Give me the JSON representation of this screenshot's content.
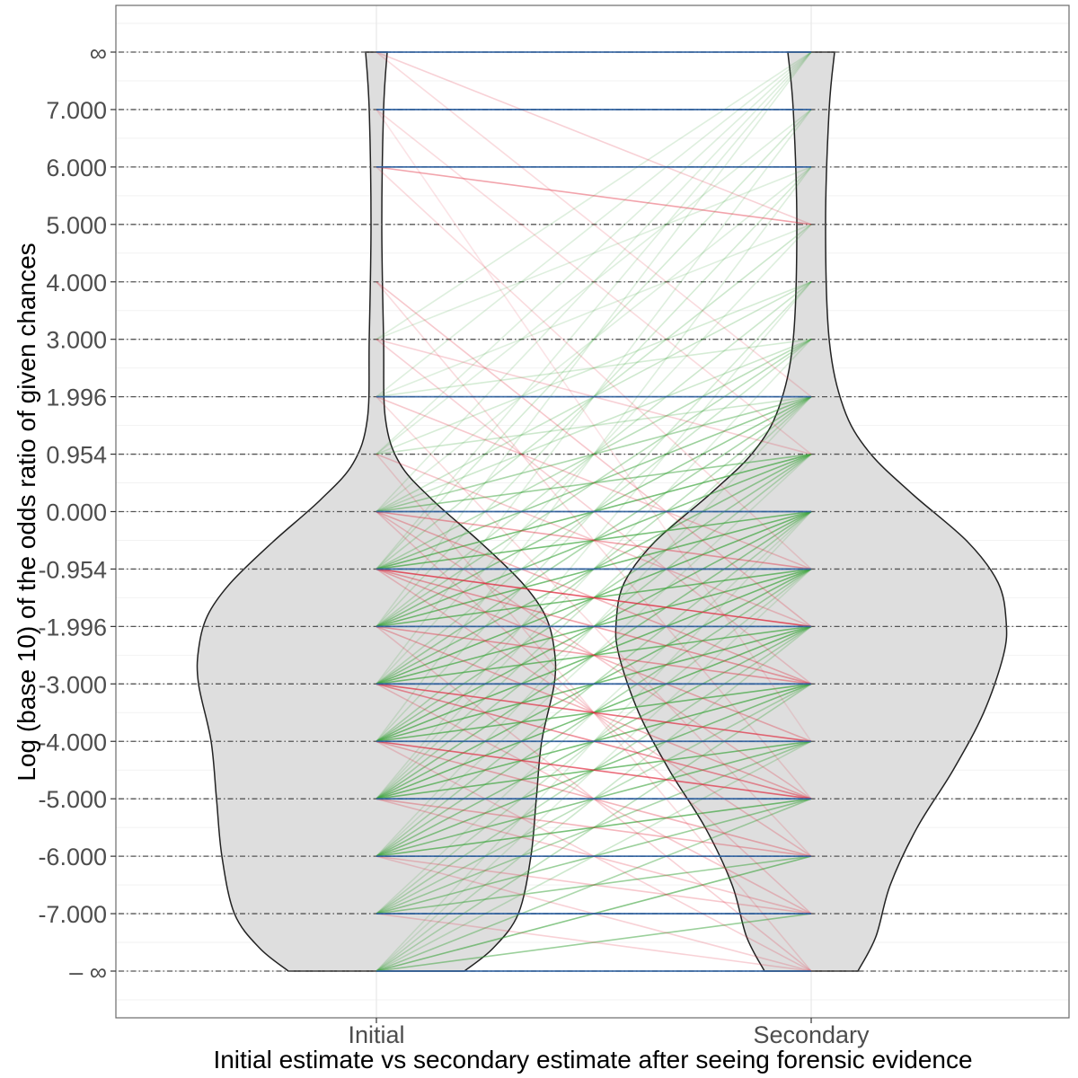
{
  "chart_data": {
    "type": "violin",
    "xlabel": "Initial estimate vs secondary estimate after seeing forensic evidence",
    "ylabel": "Log (base 10) of the odds ratio of given chances",
    "categories": [
      "Initial",
      "Secondary"
    ],
    "y_levels": [
      -8,
      -7,
      -6,
      -5,
      -4,
      -3,
      -1.996,
      -0.954,
      0,
      0.954,
      1.996,
      3,
      4,
      5,
      6,
      7,
      8
    ],
    "y_tick_labels": [
      "– ∞",
      "-7.000",
      "-6.000",
      "-5.000",
      "-4.000",
      "-3.000",
      "-1.996",
      "-0.954",
      "0.000",
      "0.954",
      "1.996",
      "3.000",
      "4.000",
      "5.000",
      "6.000",
      "7.000",
      "∞"
    ],
    "ylim": [
      -8.8,
      8.8
    ],
    "grid": true,
    "violins": [
      {
        "category": "Initial",
        "half_width_profile": [
          [
            -8,
            98
          ],
          [
            -7.6,
            130
          ],
          [
            -7,
            158
          ],
          [
            -6,
            172
          ],
          [
            -5,
            178
          ],
          [
            -4,
            184
          ],
          [
            -3,
            198
          ],
          [
            -2.4,
            198
          ],
          [
            -1.8,
            188
          ],
          [
            -1.2,
            162
          ],
          [
            -0.5,
            115
          ],
          [
            0.2,
            62
          ],
          [
            0.8,
            26
          ],
          [
            1.6,
            10
          ],
          [
            3,
            8
          ],
          [
            5,
            6
          ],
          [
            7,
            8
          ],
          [
            8,
            12
          ]
        ]
      },
      {
        "category": "Secondary",
        "half_width_profile": [
          [
            -8,
            52
          ],
          [
            -7.4,
            72
          ],
          [
            -6.5,
            88
          ],
          [
            -5.5,
            118
          ],
          [
            -4.5,
            158
          ],
          [
            -3.5,
            192
          ],
          [
            -2.5,
            214
          ],
          [
            -1.9,
            217
          ],
          [
            -1.2,
            208
          ],
          [
            -0.5,
            174
          ],
          [
            0.3,
            112
          ],
          [
            1,
            64
          ],
          [
            1.8,
            36
          ],
          [
            3,
            20
          ],
          [
            5,
            16
          ],
          [
            7,
            20
          ],
          [
            8,
            26
          ]
        ]
      }
    ],
    "transitions": [
      {
        "from": -8,
        "to": -8,
        "kind": "same",
        "weight": 0.85
      },
      {
        "from": -7,
        "to": -7,
        "kind": "same",
        "weight": 0.85
      },
      {
        "from": -6,
        "to": -6,
        "kind": "same",
        "weight": 0.85
      },
      {
        "from": -5,
        "to": -5,
        "kind": "same",
        "weight": 0.85
      },
      {
        "from": -4,
        "to": -4,
        "kind": "same",
        "weight": 0.85
      },
      {
        "from": -3,
        "to": -3,
        "kind": "same",
        "weight": 0.85
      },
      {
        "from": -1.996,
        "to": -1.996,
        "kind": "same",
        "weight": 0.85
      },
      {
        "from": -0.954,
        "to": -0.954,
        "kind": "same",
        "weight": 0.85
      },
      {
        "from": 0,
        "to": 0,
        "kind": "same",
        "weight": 0.85
      },
      {
        "from": 1.996,
        "to": 1.996,
        "kind": "same",
        "weight": 0.7
      },
      {
        "from": 6,
        "to": 6,
        "kind": "same",
        "weight": 0.6
      },
      {
        "from": 7,
        "to": 7,
        "kind": "same",
        "weight": 0.7
      },
      {
        "from": 8,
        "to": 8,
        "kind": "same",
        "weight": 0.8
      },
      {
        "from": -8,
        "to": -7,
        "kind": "up",
        "weight": 0.6
      },
      {
        "from": -8,
        "to": -6,
        "kind": "up",
        "weight": 0.7
      },
      {
        "from": -8,
        "to": -5,
        "kind": "up",
        "weight": 0.5
      },
      {
        "from": -8,
        "to": -4,
        "kind": "up",
        "weight": 0.3
      },
      {
        "from": -8,
        "to": -3,
        "kind": "up",
        "weight": 0.4
      },
      {
        "from": -8,
        "to": -1.996,
        "kind": "up",
        "weight": 0.3
      },
      {
        "from": -8,
        "to": -0.954,
        "kind": "up",
        "weight": 0.2
      },
      {
        "from": -8,
        "to": 0,
        "kind": "up",
        "weight": 0.2
      },
      {
        "from": -7,
        "to": -6,
        "kind": "up",
        "weight": 0.6
      },
      {
        "from": -7,
        "to": -5,
        "kind": "up",
        "weight": 0.6
      },
      {
        "from": -7,
        "to": -4,
        "kind": "up",
        "weight": 0.5
      },
      {
        "from": -7,
        "to": -3,
        "kind": "up",
        "weight": 0.4
      },
      {
        "from": -7,
        "to": -1.996,
        "kind": "up",
        "weight": 0.4
      },
      {
        "from": -7,
        "to": -0.954,
        "kind": "up",
        "weight": 0.3
      },
      {
        "from": -7,
        "to": 0,
        "kind": "up",
        "weight": 0.2
      },
      {
        "from": -6,
        "to": -5,
        "kind": "up",
        "weight": 0.8
      },
      {
        "from": -6,
        "to": -4,
        "kind": "up",
        "weight": 0.7
      },
      {
        "from": -6,
        "to": -3,
        "kind": "up",
        "weight": 0.7
      },
      {
        "from": -6,
        "to": -1.996,
        "kind": "up",
        "weight": 0.6
      },
      {
        "from": -6,
        "to": -0.954,
        "kind": "up",
        "weight": 0.5
      },
      {
        "from": -6,
        "to": 0,
        "kind": "up",
        "weight": 0.4
      },
      {
        "from": -6,
        "to": 0.954,
        "kind": "up",
        "weight": 0.2
      },
      {
        "from": -6,
        "to": 1.996,
        "kind": "up",
        "weight": 0.2
      },
      {
        "from": -5,
        "to": -4,
        "kind": "up",
        "weight": 0.8
      },
      {
        "from": -5,
        "to": -3,
        "kind": "up",
        "weight": 0.8
      },
      {
        "from": -5,
        "to": -1.996,
        "kind": "up",
        "weight": 0.8
      },
      {
        "from": -5,
        "to": -0.954,
        "kind": "up",
        "weight": 0.7
      },
      {
        "from": -5,
        "to": 0,
        "kind": "up",
        "weight": 0.6
      },
      {
        "from": -5,
        "to": 0.954,
        "kind": "up",
        "weight": 0.4
      },
      {
        "from": -5,
        "to": 1.996,
        "kind": "up",
        "weight": 0.3
      },
      {
        "from": -5,
        "to": 3,
        "kind": "up",
        "weight": 0.2
      },
      {
        "from": -5,
        "to": 4,
        "kind": "up",
        "weight": 0.2
      },
      {
        "from": -4,
        "to": -3,
        "kind": "up",
        "weight": 0.8
      },
      {
        "from": -4,
        "to": -1.996,
        "kind": "up",
        "weight": 0.8
      },
      {
        "from": -4,
        "to": -0.954,
        "kind": "up",
        "weight": 0.8
      },
      {
        "from": -4,
        "to": 0,
        "kind": "up",
        "weight": 0.7
      },
      {
        "from": -4,
        "to": 0.954,
        "kind": "up",
        "weight": 0.5
      },
      {
        "from": -4,
        "to": 1.996,
        "kind": "up",
        "weight": 0.4
      },
      {
        "from": -4,
        "to": 4,
        "kind": "up",
        "weight": 0.25
      },
      {
        "from": -4,
        "to": 6,
        "kind": "up",
        "weight": 0.2
      },
      {
        "from": -3,
        "to": -1.996,
        "kind": "up",
        "weight": 0.8
      },
      {
        "from": -3,
        "to": -0.954,
        "kind": "up",
        "weight": 0.8
      },
      {
        "from": -3,
        "to": 0,
        "kind": "up",
        "weight": 0.8
      },
      {
        "from": -3,
        "to": 0.954,
        "kind": "up",
        "weight": 0.6
      },
      {
        "from": -3,
        "to": 1.996,
        "kind": "up",
        "weight": 0.5
      },
      {
        "from": -3,
        "to": 3,
        "kind": "up",
        "weight": 0.3
      },
      {
        "from": -3,
        "to": 5,
        "kind": "up",
        "weight": 0.2
      },
      {
        "from": -3,
        "to": 7,
        "kind": "up",
        "weight": 0.2
      },
      {
        "from": -1.996,
        "to": -0.954,
        "kind": "up",
        "weight": 0.8
      },
      {
        "from": -1.996,
        "to": 0,
        "kind": "up",
        "weight": 0.8
      },
      {
        "from": -1.996,
        "to": 0.954,
        "kind": "up",
        "weight": 0.7
      },
      {
        "from": -1.996,
        "to": 1.996,
        "kind": "up",
        "weight": 0.6
      },
      {
        "from": -1.996,
        "to": 3,
        "kind": "up",
        "weight": 0.4
      },
      {
        "from": -1.996,
        "to": 4,
        "kind": "up",
        "weight": 0.3
      },
      {
        "from": -1.996,
        "to": 6,
        "kind": "up",
        "weight": 0.25
      },
      {
        "from": -1.996,
        "to": 8,
        "kind": "up",
        "weight": 0.2
      },
      {
        "from": -0.954,
        "to": 0,
        "kind": "up",
        "weight": 0.8
      },
      {
        "from": -0.954,
        "to": 0.954,
        "kind": "up",
        "weight": 0.8
      },
      {
        "from": -0.954,
        "to": 1.996,
        "kind": "up",
        "weight": 0.6
      },
      {
        "from": -0.954,
        "to": 3,
        "kind": "up",
        "weight": 0.4
      },
      {
        "from": -0.954,
        "to": 5,
        "kind": "up",
        "weight": 0.3
      },
      {
        "from": -0.954,
        "to": 7,
        "kind": "up",
        "weight": 0.25
      },
      {
        "from": -0.954,
        "to": 8,
        "kind": "up",
        "weight": 0.2
      },
      {
        "from": 0,
        "to": 0.954,
        "kind": "up",
        "weight": 0.6
      },
      {
        "from": 0,
        "to": 1.996,
        "kind": "up",
        "weight": 0.5
      },
      {
        "from": 0,
        "to": 3,
        "kind": "up",
        "weight": 0.3
      },
      {
        "from": 0,
        "to": 4,
        "kind": "up",
        "weight": 0.3
      },
      {
        "from": 0,
        "to": 6,
        "kind": "up",
        "weight": 0.2
      },
      {
        "from": 0,
        "to": 8,
        "kind": "up",
        "weight": 0.2
      },
      {
        "from": 0.954,
        "to": 1.996,
        "kind": "up",
        "weight": 0.3
      },
      {
        "from": 0.954,
        "to": 4,
        "kind": "up",
        "weight": 0.25
      },
      {
        "from": 0.954,
        "to": 7,
        "kind": "up",
        "weight": 0.2
      },
      {
        "from": 0.954,
        "to": 8,
        "kind": "up",
        "weight": 0.2
      },
      {
        "from": 1.996,
        "to": 3,
        "kind": "up",
        "weight": 0.25
      },
      {
        "from": 1.996,
        "to": 5,
        "kind": "up",
        "weight": 0.2
      },
      {
        "from": 1.996,
        "to": 8,
        "kind": "up",
        "weight": 0.2
      },
      {
        "from": 3,
        "to": 6,
        "kind": "up",
        "weight": 0.2
      },
      {
        "from": 3,
        "to": 8,
        "kind": "up",
        "weight": 0.2
      },
      {
        "from": 8,
        "to": 5,
        "kind": "down",
        "weight": 0.25
      },
      {
        "from": 8,
        "to": 1.996,
        "kind": "down",
        "weight": 0.2
      },
      {
        "from": 7,
        "to": 0.954,
        "kind": "down",
        "weight": 0.2
      },
      {
        "from": 7,
        "to": -4,
        "kind": "down",
        "weight": 0.15
      },
      {
        "from": 6,
        "to": 5,
        "kind": "down",
        "weight": 0.5
      },
      {
        "from": 6,
        "to": -0.954,
        "kind": "down",
        "weight": 0.2
      },
      {
        "from": 4,
        "to": -1.996,
        "kind": "down",
        "weight": 0.3
      },
      {
        "from": 4,
        "to": -5,
        "kind": "down",
        "weight": 0.2
      },
      {
        "from": 3,
        "to": 0.954,
        "kind": "down",
        "weight": 0.25
      },
      {
        "from": 3,
        "to": -3,
        "kind": "down",
        "weight": 0.25
      },
      {
        "from": 1.996,
        "to": -0.954,
        "kind": "down",
        "weight": 0.3
      },
      {
        "from": 1.996,
        "to": -6,
        "kind": "down",
        "weight": 0.2
      },
      {
        "from": 0.954,
        "to": -1.996,
        "kind": "down",
        "weight": 0.3
      },
      {
        "from": 0.954,
        "to": -8,
        "kind": "down",
        "weight": 0.2
      },
      {
        "from": 0,
        "to": -0.954,
        "kind": "down",
        "weight": 0.5
      },
      {
        "from": 0,
        "to": -3,
        "kind": "down",
        "weight": 0.4
      },
      {
        "from": 0,
        "to": -5,
        "kind": "down",
        "weight": 0.3
      },
      {
        "from": 0,
        "to": -7,
        "kind": "down",
        "weight": 0.25
      },
      {
        "from": -0.954,
        "to": -1.996,
        "kind": "down",
        "weight": 0.9
      },
      {
        "from": -0.954,
        "to": -3,
        "kind": "down",
        "weight": 0.5
      },
      {
        "from": -0.954,
        "to": -4,
        "kind": "down",
        "weight": 0.4
      },
      {
        "from": -0.954,
        "to": -6,
        "kind": "down",
        "weight": 0.3
      },
      {
        "from": -1.996,
        "to": -3,
        "kind": "down",
        "weight": 0.5
      },
      {
        "from": -1.996,
        "to": -5,
        "kind": "down",
        "weight": 0.4
      },
      {
        "from": -1.996,
        "to": -8,
        "kind": "down",
        "weight": 0.25
      },
      {
        "from": -3,
        "to": -4,
        "kind": "down",
        "weight": 0.8
      },
      {
        "from": -3,
        "to": -5,
        "kind": "down",
        "weight": 0.6
      },
      {
        "from": -3,
        "to": -7,
        "kind": "down",
        "weight": 0.3
      },
      {
        "from": -4,
        "to": -5,
        "kind": "down",
        "weight": 0.8
      },
      {
        "from": -4,
        "to": -6,
        "kind": "down",
        "weight": 0.4
      },
      {
        "from": -4,
        "to": -8,
        "kind": "down",
        "weight": 0.25
      },
      {
        "from": -5,
        "to": -6,
        "kind": "down",
        "weight": 0.4
      },
      {
        "from": -5,
        "to": -7,
        "kind": "down",
        "weight": 0.3
      },
      {
        "from": -6,
        "to": -7,
        "kind": "down",
        "weight": 0.3
      },
      {
        "from": -6,
        "to": -8,
        "kind": "down",
        "weight": 0.25
      },
      {
        "from": -7,
        "to": -8,
        "kind": "down",
        "weight": 0.25
      }
    ],
    "colors": {
      "violin_fill": "#dedede",
      "violin_stroke": "#222222",
      "same": "#2c5f9e",
      "up": "#3aa33a",
      "down": "#e0283c",
      "level_line": "#555555",
      "grid_major": "#e3e3e3",
      "grid_minor": "#f2f2f2",
      "panel_border": "#6b6b6b"
    }
  }
}
